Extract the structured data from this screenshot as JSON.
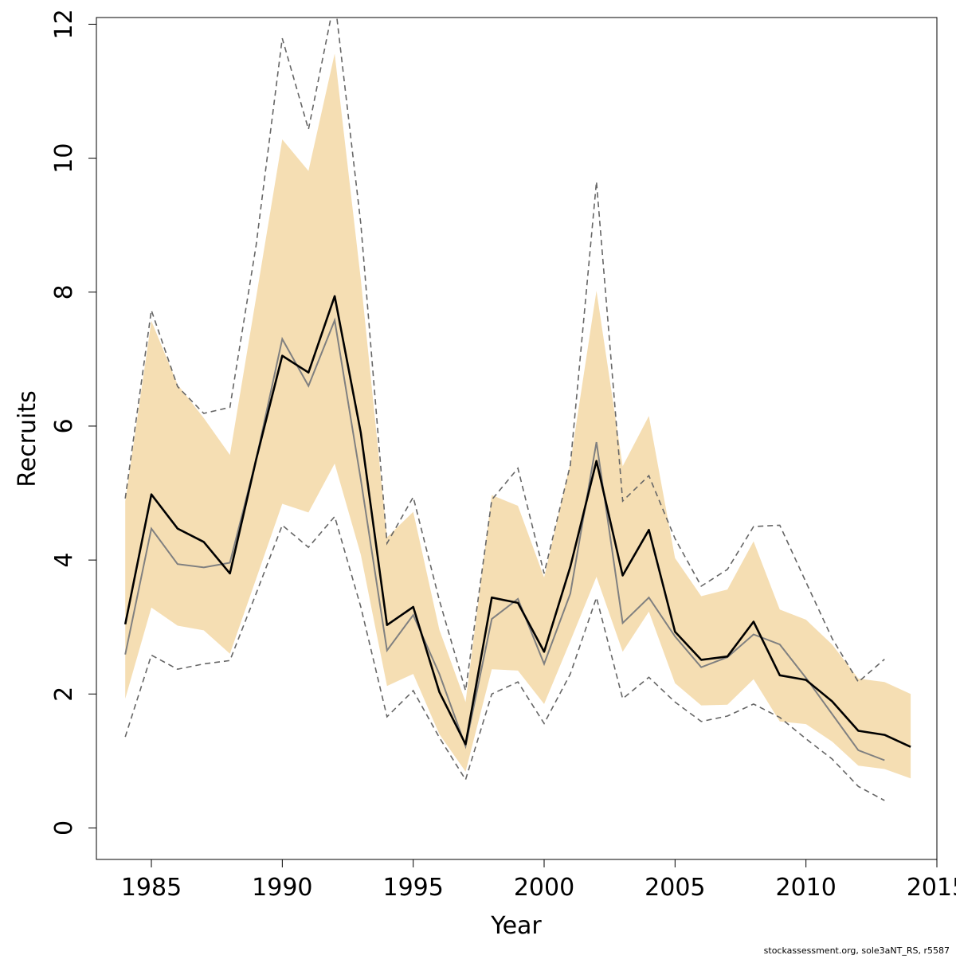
{
  "chart_data": {
    "type": "line",
    "xlabel": "Year",
    "ylabel": "Recruits",
    "xlim": [
      1982.9,
      2015.0
    ],
    "ylim": [
      -0.47,
      12.1
    ],
    "x_ticks": [
      1985,
      1990,
      1995,
      2000,
      2005,
      2010,
      2015
    ],
    "y_ticks": [
      0,
      2,
      4,
      6,
      8,
      10,
      12
    ],
    "grid": false,
    "legend": "none",
    "footer": "stockassessment.org, sole3aNT_RS, r5587",
    "colors": {
      "band": "#f5deb3",
      "estimate": "#000000",
      "previous": "#808080",
      "previous_ci": "#666666",
      "axis": "#000000"
    },
    "series": [
      {
        "role": "estimate",
        "x": [
          1984,
          1985,
          1986,
          1987,
          1988,
          1989,
          1990,
          1991,
          1992,
          1993,
          1994,
          1995,
          1996,
          1997,
          1998,
          1999,
          2000,
          2001,
          2002,
          2003,
          2004,
          2005,
          2006,
          2007,
          2008,
          2009,
          2010,
          2011,
          2012,
          2013,
          2014
        ],
        "values": [
          3.04,
          4.98,
          4.47,
          4.27,
          3.8,
          5.5,
          7.05,
          6.8,
          7.94,
          5.9,
          3.03,
          3.3,
          2.03,
          1.25,
          3.44,
          3.36,
          2.63,
          3.9,
          5.48,
          3.77,
          4.45,
          2.93,
          2.51,
          2.56,
          3.08,
          2.28,
          2.21,
          1.89,
          1.45,
          1.39,
          1.21
        ],
        "lower": [
          1.93,
          3.29,
          3.02,
          2.95,
          2.6,
          3.72,
          4.84,
          4.71,
          5.44,
          4.08,
          2.12,
          2.3,
          1.4,
          0.84,
          2.37,
          2.35,
          1.85,
          2.79,
          3.75,
          2.63,
          3.23,
          2.16,
          1.83,
          1.84,
          2.22,
          1.59,
          1.55,
          1.29,
          0.93,
          0.88,
          0.74
        ],
        "upper": [
          4.88,
          7.57,
          6.62,
          6.12,
          5.57,
          7.92,
          10.28,
          9.81,
          11.56,
          8.19,
          4.34,
          4.72,
          2.96,
          1.88,
          4.97,
          4.81,
          3.74,
          5.45,
          8.02,
          5.4,
          6.15,
          4.03,
          3.46,
          3.56,
          4.28,
          3.26,
          3.11,
          2.74,
          2.23,
          2.18,
          2.0
        ]
      },
      {
        "role": "previous",
        "x": [
          1984,
          1985,
          1986,
          1987,
          1988,
          1989,
          1990,
          1991,
          1992,
          1993,
          1994,
          1995,
          1996,
          1997,
          1998,
          1999,
          2000,
          2001,
          2002,
          2003,
          2004,
          2005,
          2006,
          2007,
          2008,
          2009,
          2010,
          2011,
          2012,
          2013
        ],
        "values": [
          2.59,
          4.47,
          3.94,
          3.89,
          3.96,
          5.5,
          7.3,
          6.6,
          7.58,
          5.2,
          2.65,
          3.18,
          2.3,
          1.22,
          3.12,
          3.42,
          2.45,
          3.5,
          5.76,
          3.06,
          3.44,
          2.86,
          2.4,
          2.55,
          2.89,
          2.74,
          2.24,
          1.7,
          1.16,
          1.01
        ],
        "lower": [
          1.36,
          2.58,
          2.37,
          2.45,
          2.5,
          3.5,
          4.52,
          4.19,
          4.65,
          3.3,
          1.66,
          2.05,
          1.35,
          0.72,
          2.0,
          2.18,
          1.56,
          2.3,
          3.44,
          1.93,
          2.25,
          1.88,
          1.59,
          1.67,
          1.85,
          1.65,
          1.33,
          1.03,
          0.62,
          0.41
        ],
        "upper": [
          4.92,
          7.73,
          6.59,
          6.19,
          6.28,
          8.7,
          11.79,
          10.43,
          12.38,
          9.02,
          4.25,
          4.94,
          3.4,
          2.05,
          4.9,
          5.37,
          3.8,
          5.42,
          9.65,
          4.88,
          5.26,
          4.32,
          3.61,
          3.86,
          4.5,
          4.52,
          3.67,
          2.83,
          2.18,
          2.52
        ]
      }
    ]
  }
}
